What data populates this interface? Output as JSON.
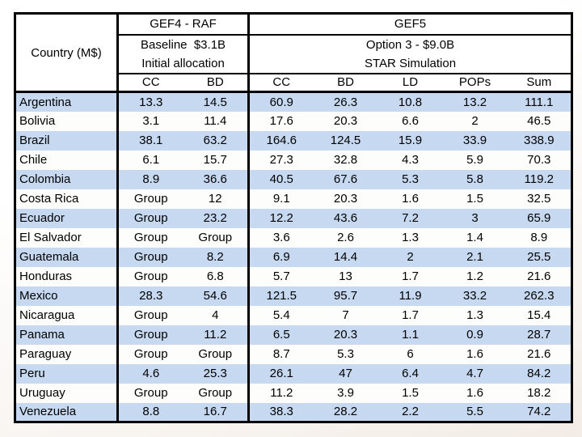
{
  "slide": {
    "background_top_color": "#ffffff",
    "background_bottom_color": "#f6f1ec"
  },
  "table": {
    "corner_label": "Country (M$)",
    "sections": [
      {
        "title": "GEF4 - RAF",
        "subtitle_line1": "Baseline  $3.1B",
        "subtitle_line2": "Initial allocation",
        "columns": [
          "CC",
          "BD"
        ]
      },
      {
        "title": "GEF5",
        "subtitle_line1": "Option 3 - $9.0B",
        "subtitle_line2": "STAR Simulation",
        "columns": [
          "CC",
          "BD",
          "LD",
          "POPs",
          "Sum"
        ]
      }
    ],
    "colors": {
      "row_highlight": "#c6d9f0",
      "row_base": "#fdfdfc",
      "border": "#000000"
    }
  },
  "chart_data": {
    "type": "table",
    "title": "GEF4 RAF vs GEF5 STAR Simulation allocations (M$)",
    "column_groups": [
      {
        "group": "GEF4 - RAF",
        "scenario": "Baseline  $3.1B Initial allocation",
        "columns": [
          "CC",
          "BD"
        ]
      },
      {
        "group": "GEF5",
        "scenario": "Option 3 - $9.0B STAR Simulation",
        "columns": [
          "CC",
          "BD",
          "LD",
          "POPs",
          "Sum"
        ]
      }
    ],
    "columns": [
      "Country (M$)",
      "CC",
      "BD",
      "CC",
      "BD",
      "LD",
      "POPs",
      "Sum"
    ],
    "rows": [
      [
        "Argentina",
        "13.3",
        "14.5",
        "60.9",
        "26.3",
        "10.8",
        "13.2",
        "111.1"
      ],
      [
        "Bolivia",
        "3.1",
        "11.4",
        "17.6",
        "20.3",
        "6.6",
        "2",
        "46.5"
      ],
      [
        "Brazil",
        "38.1",
        "63.2",
        "164.6",
        "124.5",
        "15.9",
        "33.9",
        "338.9"
      ],
      [
        "Chile",
        "6.1",
        "15.7",
        "27.3",
        "32.8",
        "4.3",
        "5.9",
        "70.3"
      ],
      [
        "Colombia",
        "8.9",
        "36.6",
        "40.5",
        "67.6",
        "5.3",
        "5.8",
        "119.2"
      ],
      [
        "Costa Rica",
        "Group",
        "12",
        "9.1",
        "20.3",
        "1.6",
        "1.5",
        "32.5"
      ],
      [
        "Ecuador",
        "Group",
        "23.2",
        "12.2",
        "43.6",
        "7.2",
        "3",
        "65.9"
      ],
      [
        "El Salvador",
        "Group",
        "Group",
        "3.6",
        "2.6",
        "1.3",
        "1.4",
        "8.9"
      ],
      [
        "Guatemala",
        "Group",
        "8.2",
        "6.9",
        "14.4",
        "2",
        "2.1",
        "25.5"
      ],
      [
        "Honduras",
        "Group",
        "6.8",
        "5.7",
        "13",
        "1.7",
        "1.2",
        "21.6"
      ],
      [
        "Mexico",
        "28.3",
        "54.6",
        "121.5",
        "95.7",
        "11.9",
        "33.2",
        "262.3"
      ],
      [
        "Nicaragua",
        "Group",
        "4",
        "5.4",
        "7",
        "1.7",
        "1.3",
        "15.4"
      ],
      [
        "Panama",
        "Group",
        "11.2",
        "6.5",
        "20.3",
        "1.1",
        "0.9",
        "28.7"
      ],
      [
        "Paraguay",
        "Group",
        "Group",
        "8.7",
        "5.3",
        "6",
        "1.6",
        "21.6"
      ],
      [
        "Peru",
        "4.6",
        "25.3",
        "26.1",
        "47",
        "6.4",
        "4.7",
        "84.2"
      ],
      [
        "Uruguay",
        "Group",
        "Group",
        "11.2",
        "3.9",
        "1.5",
        "1.6",
        "18.2"
      ],
      [
        "Venezuela",
        "8.8",
        "16.7",
        "38.3",
        "28.2",
        "2.2",
        "5.5",
        "74.2"
      ]
    ]
  }
}
